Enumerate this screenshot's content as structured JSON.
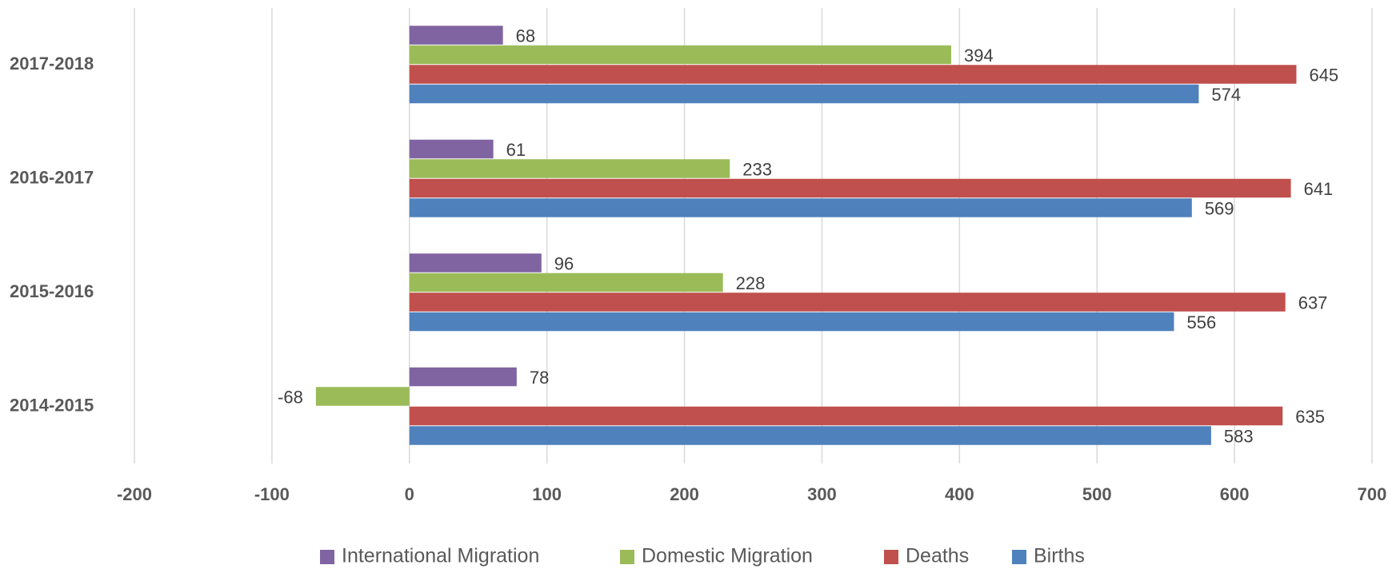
{
  "chart_data": {
    "type": "barh",
    "categories": [
      "2014-2015",
      "2015-2016",
      "2016-2017",
      "2017-2018"
    ],
    "series": [
      {
        "name": "International Migration",
        "color": "#8064a2",
        "values": [
          78,
          96,
          61,
          68
        ]
      },
      {
        "name": "Domestic Migration",
        "color": "#9bbb59",
        "values": [
          -68,
          228,
          233,
          394
        ]
      },
      {
        "name": "Deaths",
        "color": "#c0504d",
        "values": [
          635,
          637,
          641,
          645
        ]
      },
      {
        "name": "Births",
        "color": "#4f81bd",
        "values": [
          583,
          556,
          569,
          574
        ]
      }
    ],
    "xlim": [
      -200,
      700
    ],
    "xticks": [
      -200,
      -100,
      0,
      100,
      200,
      300,
      400,
      500,
      600,
      700
    ],
    "grid": true,
    "legend": "bottom"
  }
}
